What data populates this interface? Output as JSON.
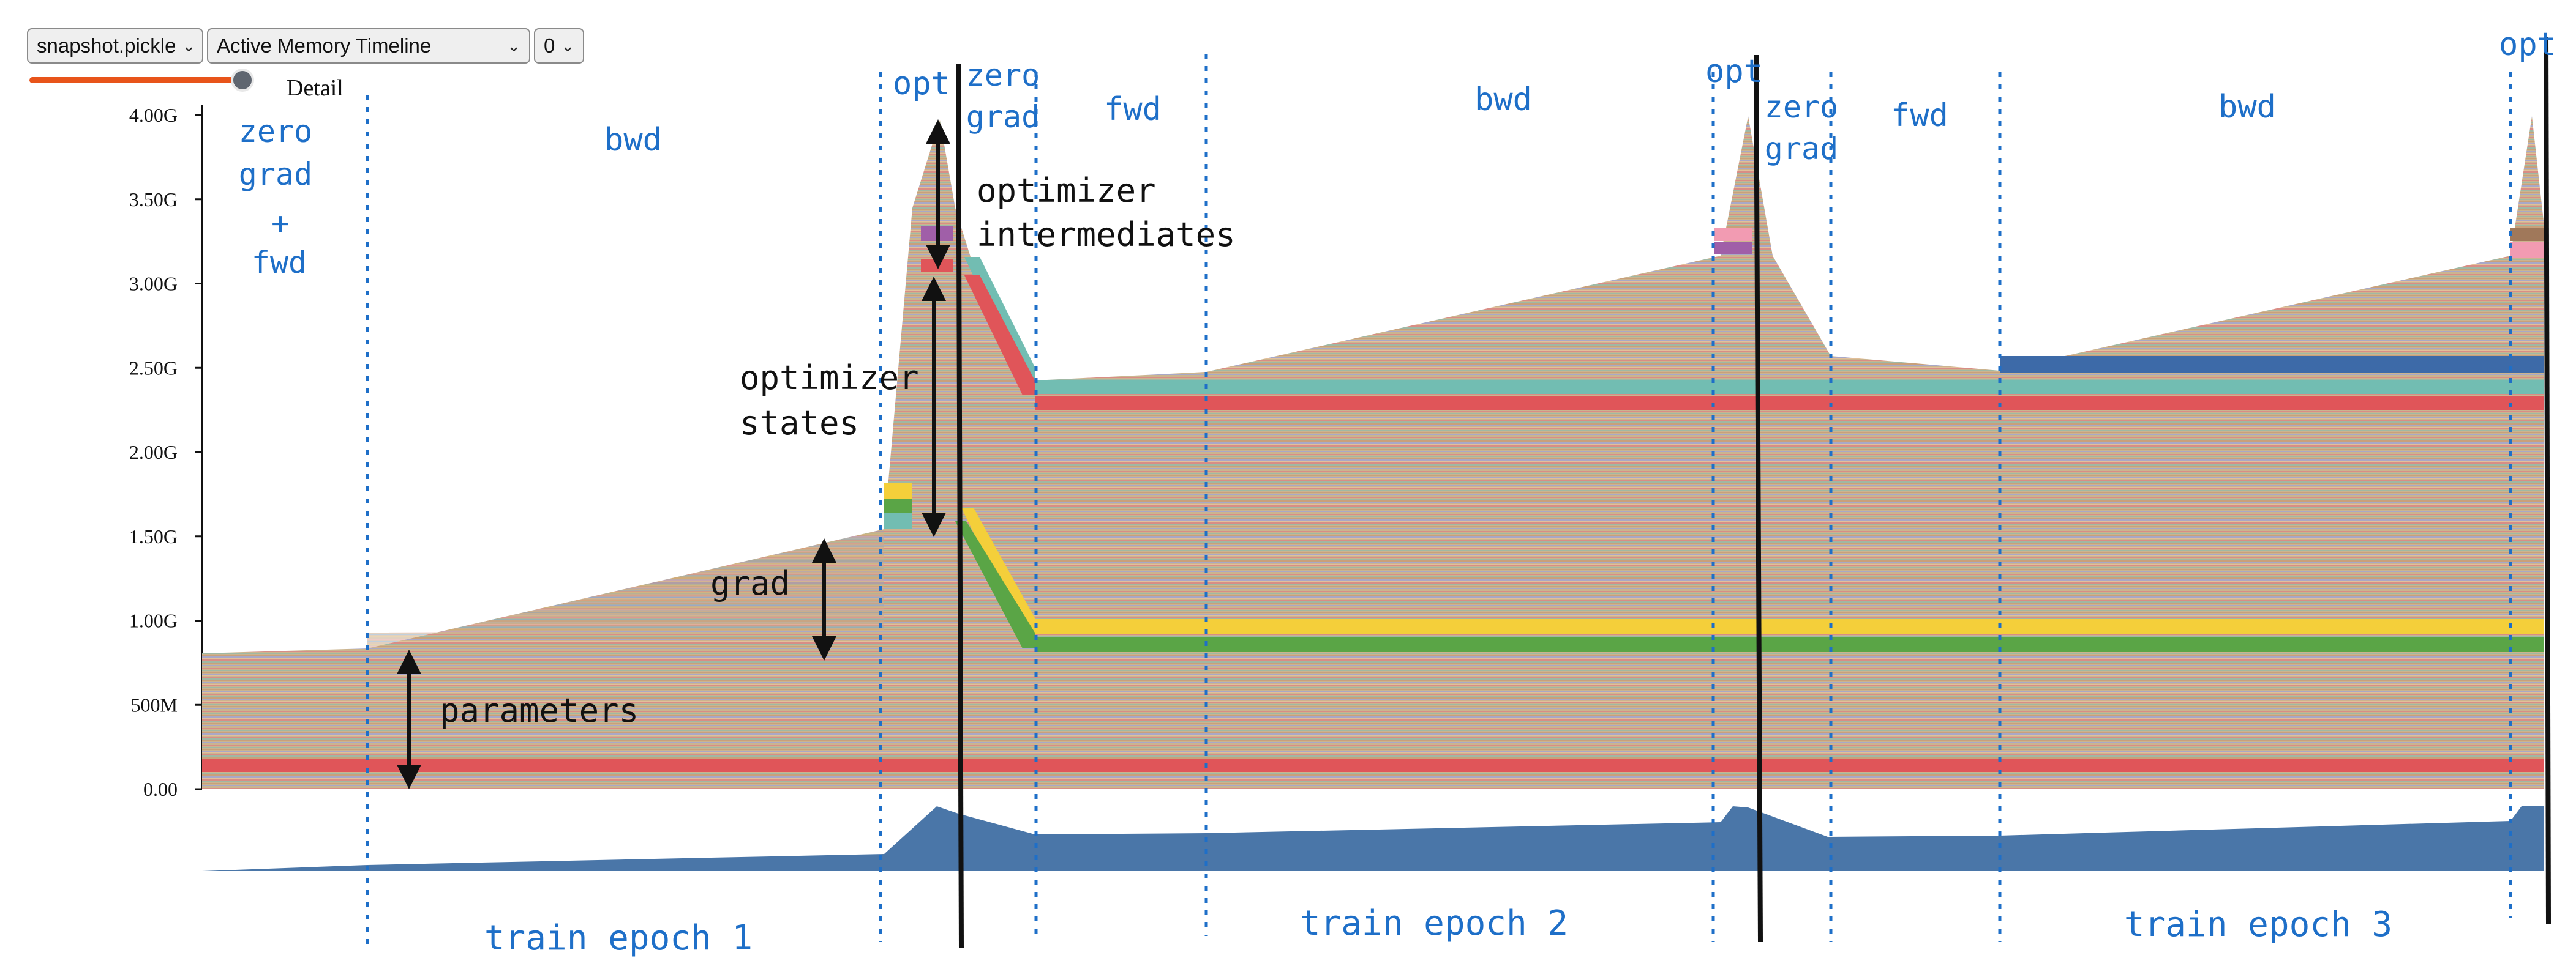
{
  "toolbar": {
    "file_select": "snapshot.pickle",
    "view_select": "Active Memory Timeline",
    "number_select": "0",
    "detail_label": "Detail",
    "detail_level": 0.85
  },
  "colors": {
    "accent": "#e8541a",
    "annotation_blue": "#1e6fc8",
    "overview_fill": "#4a76a8",
    "band_red": "#e05559",
    "band_teal": "#72bdb2",
    "band_yellow": "#f4cf3a",
    "band_green": "#5aa546",
    "band_navy": "#3d6aa8",
    "band_pink": "#f29bb2",
    "band_purple": "#a05fa8"
  },
  "chart_data": {
    "type": "area",
    "title": "",
    "xlabel": "",
    "ylabel": "",
    "ylim": [
      0,
      4.0
    ],
    "y_ticks": [
      "4.00G",
      "3.50G",
      "3.00G",
      "2.50G",
      "2.00G",
      "1.50G",
      "1.00G",
      "500M",
      "0.00"
    ],
    "y_tick_values": [
      4.0,
      3.5,
      3.0,
      2.5,
      2.0,
      1.5,
      1.0,
      0.5,
      0.0
    ],
    "x": [
      0,
      1,
      4,
      4.5,
      5,
      5.5,
      6,
      9,
      9.5,
      10,
      11,
      13.5,
      14
    ],
    "total_memory_gb": [
      0.8,
      0.84,
      1.55,
      3.05,
      3.95,
      2.4,
      2.45,
      3.15,
      3.95,
      2.5,
      2.45,
      3.15,
      3.95
    ],
    "grid": false,
    "legend": "none",
    "phase_labels": [
      "zero grad + fwd",
      "bwd",
      "opt",
      "zero grad",
      "fwd",
      "bwd",
      "opt",
      "zero grad",
      "fwd",
      "bwd",
      "opt"
    ],
    "epoch_labels": [
      "train epoch 1",
      "train epoch 2",
      "train epoch 3"
    ]
  },
  "annotations": {
    "zero_grad_fwd": [
      "zero",
      "grad",
      "+",
      "fwd"
    ],
    "bwd": "bwd",
    "opt": "opt",
    "zero_grad": [
      "zero",
      "grad"
    ],
    "fwd": "fwd",
    "optimizer_intermediates": [
      "optimizer",
      "intermediates"
    ],
    "optimizer_states": [
      "optimizer",
      "states"
    ],
    "grad": "grad",
    "parameters": "parameters",
    "epoch1": "train epoch 1",
    "epoch2": "train epoch 2",
    "epoch3": "train epoch 3"
  }
}
